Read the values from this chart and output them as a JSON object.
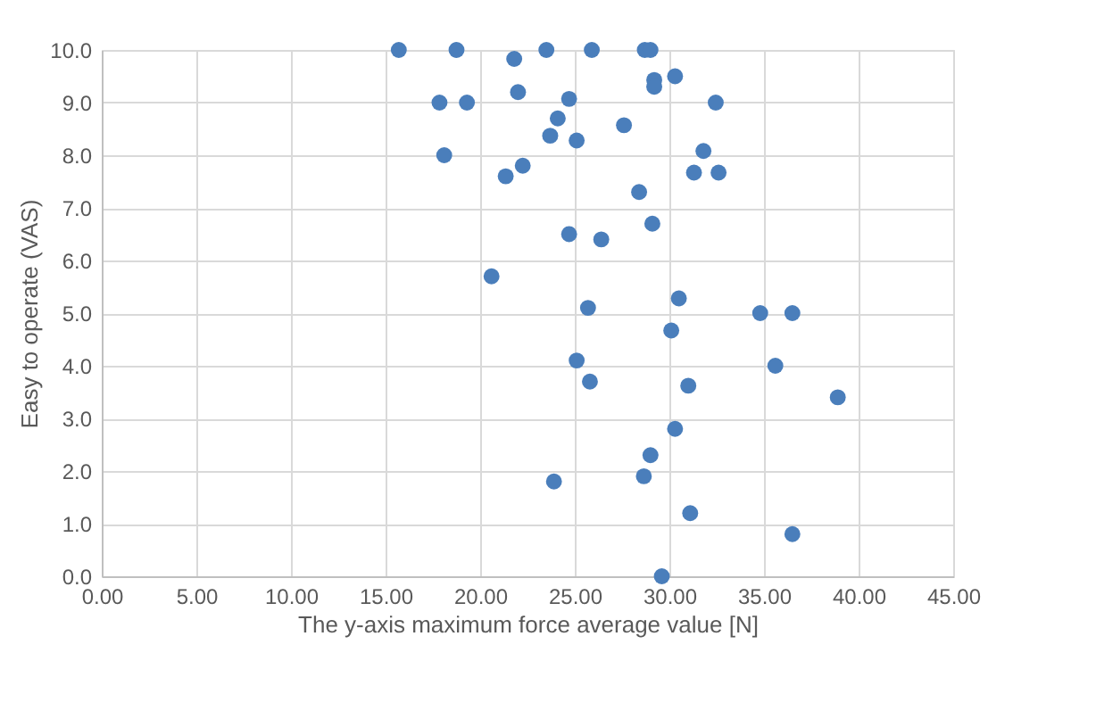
{
  "chart_data": {
    "type": "scatter",
    "xlabel": "The y-axis maximum force average value [N]",
    "ylabel": "Easy to operate (VAS)",
    "x": [
      15.7,
      18.75,
      21.8,
      23.5,
      25.9,
      28.7,
      29.0,
      29.2,
      29.2,
      30.3,
      17.85,
      19.3,
      22.0,
      24.7,
      32.45,
      24.1,
      23.7,
      25.1,
      27.6,
      18.1,
      31.8,
      31.3,
      32.6,
      21.35,
      22.25,
      28.4,
      24.7,
      26.4,
      29.1,
      20.6,
      30.5,
      25.7,
      34.8,
      36.5,
      30.1,
      25.1,
      35.6,
      25.8,
      31.0,
      38.9,
      30.3,
      29.0,
      28.65,
      23.9,
      31.1,
      36.5,
      29.6
    ],
    "series": [
      {
        "color": "#4a7ebb",
        "values": [
          10.0,
          10.0,
          9.83,
          10.0,
          10.0,
          10.0,
          10.0,
          9.43,
          9.3,
          9.5,
          9.0,
          9.0,
          9.2,
          9.07,
          9.0,
          8.7,
          8.37,
          8.28,
          8.57,
          8.0,
          8.08,
          7.67,
          7.67,
          7.6,
          7.8,
          7.3,
          6.5,
          6.4,
          6.7,
          5.7,
          5.28,
          5.1,
          5.0,
          5.0,
          4.67,
          4.1,
          4.0,
          3.7,
          3.62,
          3.4,
          2.8,
          2.3,
          1.9,
          1.8,
          1.2,
          0.8,
          0.0
        ]
      }
    ],
    "xlim": [
      0,
      45
    ],
    "xticks": [
      {
        "value": 0,
        "label": "0.00"
      },
      {
        "value": 5,
        "label": "5.00"
      },
      {
        "value": 10,
        "label": "10.00"
      },
      {
        "value": 15,
        "label": "15.00"
      },
      {
        "value": 20,
        "label": "20.00"
      },
      {
        "value": 25,
        "label": "25.00"
      },
      {
        "value": 30,
        "label": "30.00"
      },
      {
        "value": 35,
        "label": "35.00"
      },
      {
        "value": 40,
        "label": "40.00"
      },
      {
        "value": 45,
        "label": "45.00"
      }
    ],
    "ylim": [
      0,
      10
    ],
    "yticks": [
      {
        "value": 0,
        "label": "0.0"
      },
      {
        "value": 1,
        "label": "1.0"
      },
      {
        "value": 2,
        "label": "2.0"
      },
      {
        "value": 3,
        "label": "3.0"
      },
      {
        "value": 4,
        "label": "4.0"
      },
      {
        "value": 5,
        "label": "5.0"
      },
      {
        "value": 6,
        "label": "6.0"
      },
      {
        "value": 7,
        "label": "7.0"
      },
      {
        "value": 8,
        "label": "8.0"
      },
      {
        "value": 9,
        "label": "9.0"
      },
      {
        "value": 10,
        "label": "10.0"
      }
    ],
    "grid": true,
    "marker": "circle",
    "legend": false
  }
}
